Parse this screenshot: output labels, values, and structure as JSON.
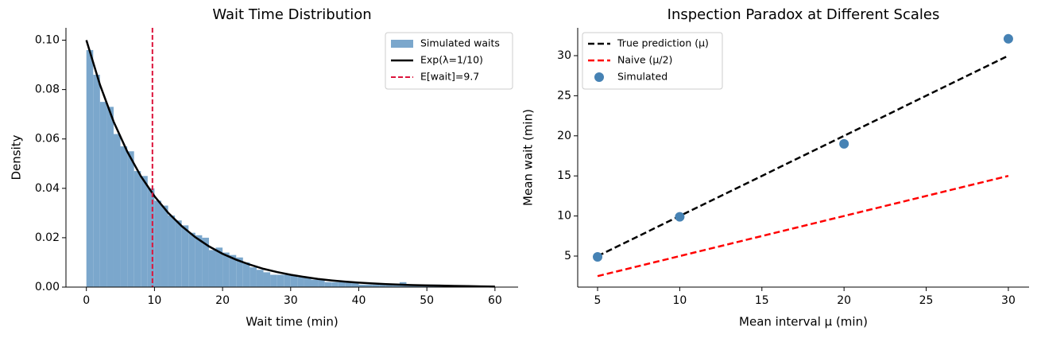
{
  "chart_data": [
    {
      "type": "histogram",
      "title": "Wait Time Distribution",
      "xlabel": "Wait time (min)",
      "ylabel": "Density",
      "xlim": [
        -3.0,
        63.4
      ],
      "ylim": [
        0,
        0.105
      ],
      "xticks": [
        0,
        10,
        20,
        30,
        40,
        50,
        60
      ],
      "yticks": [
        {
          "value": 0,
          "label": "0.00"
        },
        {
          "value": 0.02,
          "label": "0.02"
        },
        {
          "value": 0.04,
          "label": "0.04"
        },
        {
          "value": 0.06,
          "label": "0.06"
        },
        {
          "value": 0.08,
          "label": "0.08"
        },
        {
          "value": 0.1,
          "label": "0.10"
        }
      ],
      "legend": "upper right",
      "bins": [
        0,
        1,
        2,
        3,
        4,
        5,
        6,
        7,
        8,
        9,
        10,
        11,
        12,
        13,
        14,
        15,
        16,
        17,
        18,
        19,
        20,
        21,
        22,
        23,
        24,
        25,
        26,
        27,
        28,
        29,
        30,
        31,
        32,
        33,
        34,
        35,
        36,
        37,
        38,
        39,
        40,
        41,
        42,
        43,
        44,
        45,
        46,
        47,
        48,
        49,
        50,
        51,
        52,
        53,
        54,
        55,
        56,
        57,
        58,
        59,
        60
      ],
      "series": [
        {
          "name": "Simulated waits",
          "type": "histogram",
          "color": "#7ba7cc",
          "values": [
            0.096,
            0.086,
            0.075,
            0.073,
            0.062,
            0.057,
            0.055,
            0.047,
            0.045,
            0.04,
            0.035,
            0.033,
            0.029,
            0.027,
            0.025,
            0.022,
            0.021,
            0.02,
            0.015,
            0.016,
            0.014,
            0.013,
            0.012,
            0.01,
            0.008,
            0.007,
            0.006,
            0.005,
            0.005,
            0.005,
            0.005,
            0.004,
            0.004,
            0.003,
            0.003,
            0.002,
            0.002,
            0.002,
            0.002,
            0.002,
            0.001,
            0.001,
            0.001,
            0.001,
            0.001,
            0.001,
            0.002,
            0.001,
            0.001,
            0.001,
            0.001,
            0.001,
            0.0005,
            0.0005,
            0.0005,
            0.0003,
            0.0003,
            0.0003,
            0.0002,
            0.0002
          ]
        },
        {
          "name": "Exp(λ=1/10)",
          "type": "line",
          "color": "#000000",
          "dash": false,
          "x": [
            0,
            2,
            4,
            6,
            8,
            10,
            12,
            14,
            16,
            18,
            20,
            22,
            24,
            26,
            28,
            30,
            32,
            34,
            36,
            38,
            40,
            42,
            44,
            46,
            48,
            50,
            52,
            54,
            56,
            58,
            60
          ],
          "values": [
            0.1,
            0.0819,
            0.067,
            0.0549,
            0.0449,
            0.0368,
            0.0301,
            0.0247,
            0.0202,
            0.0165,
            0.0135,
            0.0111,
            0.0091,
            0.0074,
            0.0061,
            0.005,
            0.0041,
            0.0033,
            0.0027,
            0.0022,
            0.0018,
            0.0015,
            0.0012,
            0.001,
            0.0008,
            0.0007,
            0.0006,
            0.0005,
            0.0004,
            0.0003,
            0.0002
          ]
        },
        {
          "name": "E[wait]=9.7",
          "type": "vline",
          "color": "#dc143c",
          "x": 9.7
        }
      ]
    },
    {
      "type": "scatter",
      "title": "Inspection Paradox at Different Scales",
      "xlabel": "Mean interval μ (min)",
      "ylabel": "Mean wait (min)",
      "xlim": [
        3.79,
        31.26
      ],
      "ylim": [
        1.13,
        33.47
      ],
      "xticks": [
        5,
        10,
        15,
        20,
        25,
        30
      ],
      "yticks": [
        5,
        10,
        15,
        20,
        25,
        30
      ],
      "legend": "upper left",
      "series": [
        {
          "name": "True prediction (μ)",
          "type": "line",
          "color": "#000000",
          "dash": true,
          "x": [
            5,
            30
          ],
          "values": [
            5,
            30
          ]
        },
        {
          "name": "Naive (μ/2)",
          "type": "line",
          "color": "#ff0000",
          "dash": true,
          "x": [
            5,
            30
          ],
          "values": [
            2.5,
            15
          ]
        },
        {
          "name": "Simulated",
          "type": "scatter",
          "color": "#4682b4",
          "x": [
            5,
            10,
            20,
            30
          ],
          "values": [
            4.9,
            9.9,
            19,
            32.1
          ]
        }
      ]
    }
  ]
}
